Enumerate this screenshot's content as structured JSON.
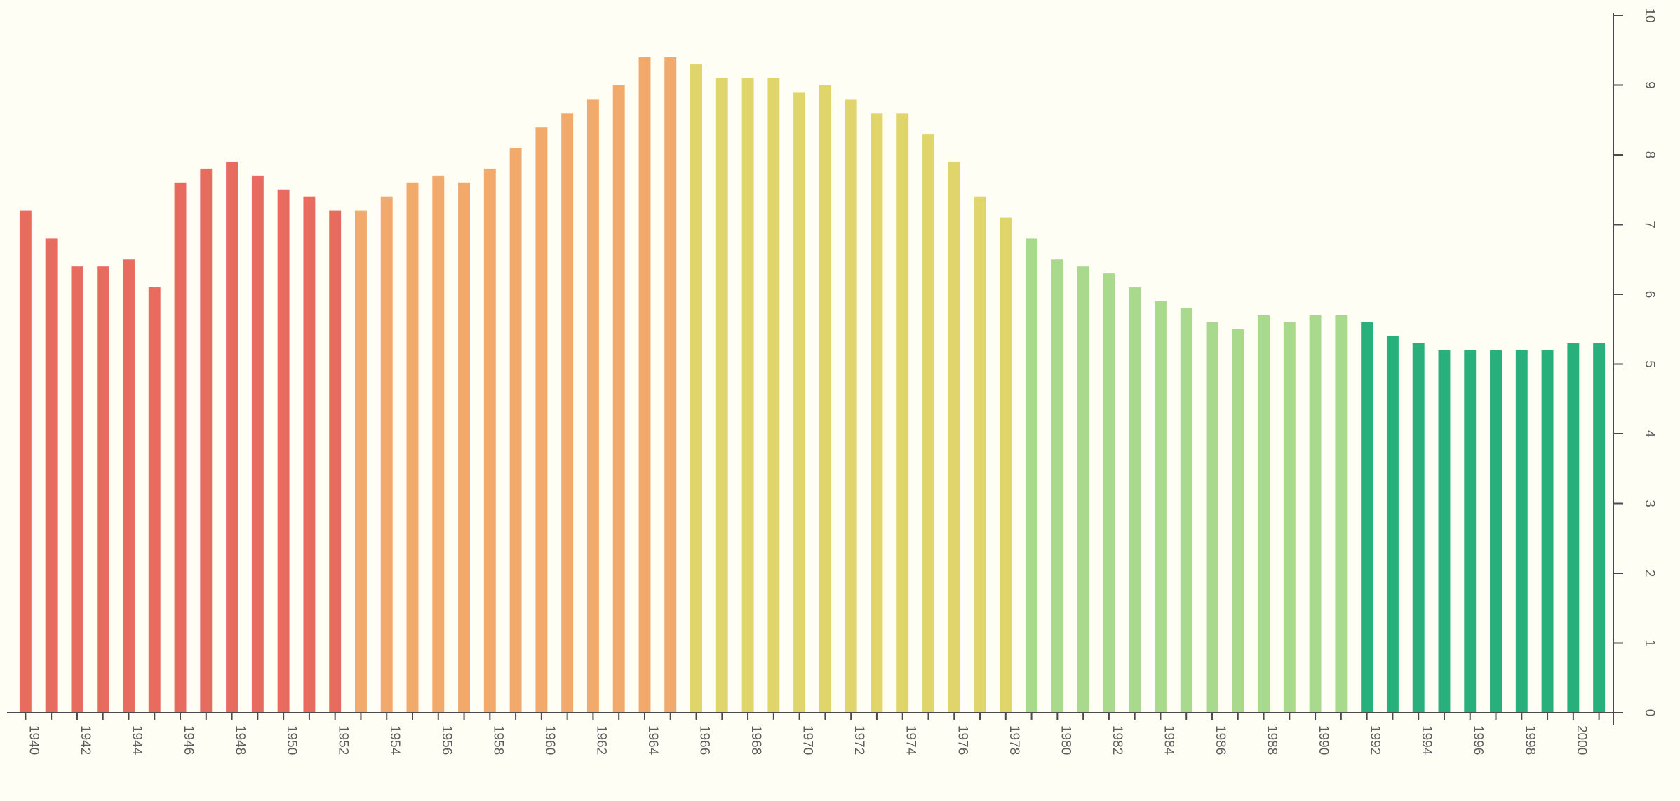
{
  "chart_data": {
    "type": "bar",
    "title": "",
    "xlabel": "",
    "ylabel": "",
    "ylim": [
      0,
      10
    ],
    "y_ticks": [
      0,
      1,
      2,
      3,
      4,
      5,
      6,
      7,
      8,
      9,
      10
    ],
    "y_tick_labels": [
      "0",
      "1",
      "2",
      "3",
      "4",
      "5",
      "6",
      "7",
      "8",
      "9",
      "10"
    ],
    "y_axis_side": "right",
    "grid": false,
    "legend": "none",
    "categories": [
      "1940",
      "1941",
      "1942",
      "1943",
      "1944",
      "1945",
      "1946",
      "1947",
      "1948",
      "1949",
      "1950",
      "1951",
      "1952",
      "1953",
      "1954",
      "1955",
      "1956",
      "1957",
      "1958",
      "1959",
      "1960",
      "1961",
      "1962",
      "1963",
      "1964",
      "1965",
      "1966",
      "1967",
      "1968",
      "1969",
      "1970",
      "1971",
      "1972",
      "1973",
      "1974",
      "1975",
      "1976",
      "1977",
      "1978",
      "1979",
      "1980",
      "1981",
      "1982",
      "1983",
      "1984",
      "1985",
      "1986",
      "1987",
      "1988",
      "1989",
      "1990",
      "1991",
      "1992",
      "1993",
      "1994",
      "1995",
      "1996",
      "1997",
      "1998",
      "1999",
      "2000",
      "2001"
    ],
    "x_tick_labels": [
      "1940",
      "1942",
      "1944",
      "1946",
      "1948",
      "1950",
      "1952",
      "1954",
      "1956",
      "1958",
      "1960",
      "1962",
      "1964",
      "1966",
      "1968",
      "1970",
      "1972",
      "1974",
      "1976",
      "1978",
      "1980",
      "1982",
      "1984",
      "1986",
      "1988",
      "1990",
      "1992",
      "1994",
      "1996",
      "1998",
      "2000"
    ],
    "values": [
      7.2,
      6.8,
      6.4,
      6.4,
      6.5,
      6.1,
      7.6,
      7.8,
      7.9,
      7.7,
      7.5,
      7.4,
      7.2,
      7.2,
      7.4,
      7.6,
      7.7,
      7.6,
      7.8,
      8.1,
      8.4,
      8.6,
      8.8,
      9.0,
      9.4,
      9.4,
      9.3,
      9.1,
      9.1,
      9.1,
      8.9,
      9.0,
      8.8,
      8.6,
      8.6,
      8.3,
      7.9,
      7.4,
      7.1,
      6.8,
      6.5,
      6.4,
      6.3,
      6.1,
      5.9,
      5.8,
      5.6,
      5.5,
      5.7,
      5.6,
      5.7,
      5.7,
      5.6,
      5.4,
      5.3,
      5.2,
      5.2,
      5.2,
      5.2,
      5.2,
      5.3,
      5.3
    ],
    "bar_colors": {
      "1940-1952": "#e86b60",
      "1953-1965": "#f1a96c",
      "1966-1978": "#e0d56b",
      "1979-1991": "#a9d98c",
      "1992-2001": "#28b07c"
    },
    "axis_color": "#4a4a4a",
    "label_color": "#5c5c5c"
  }
}
